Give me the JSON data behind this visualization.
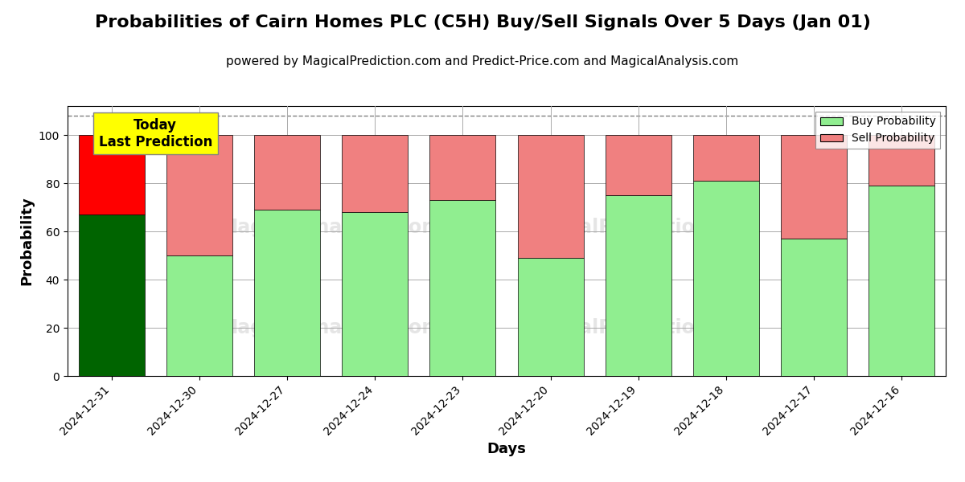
{
  "title": "Probabilities of Cairn Homes PLC (C5H) Buy/Sell Signals Over 5 Days (Jan 01)",
  "subtitle": "powered by MagicalPrediction.com and Predict-Price.com and MagicalAnalysis.com",
  "xlabel": "Days",
  "ylabel": "Probability",
  "categories": [
    "2024-12-31",
    "2024-12-30",
    "2024-12-27",
    "2024-12-24",
    "2024-12-23",
    "2024-12-20",
    "2024-12-19",
    "2024-12-18",
    "2024-12-17",
    "2024-12-16"
  ],
  "buy_values": [
    67,
    50,
    69,
    68,
    73,
    49,
    75,
    81,
    57,
    79
  ],
  "sell_values": [
    33,
    50,
    31,
    32,
    27,
    51,
    25,
    19,
    43,
    21
  ],
  "today_index": 0,
  "buy_color_today": "#006400",
  "sell_color_today": "#FF0000",
  "buy_color_other": "#90EE90",
  "sell_color_other": "#F08080",
  "today_label_bg": "#FFFF00",
  "today_label_text": "Today\nLast Prediction",
  "legend_buy_label": "Buy Probability",
  "legend_sell_label": "Sell Probability",
  "ylim": [
    0,
    112
  ],
  "dashed_line_y": 108,
  "background_color": "#ffffff",
  "grid_color": "#aaaaaa",
  "title_fontsize": 16,
  "subtitle_fontsize": 11,
  "axis_label_fontsize": 13,
  "tick_fontsize": 10
}
